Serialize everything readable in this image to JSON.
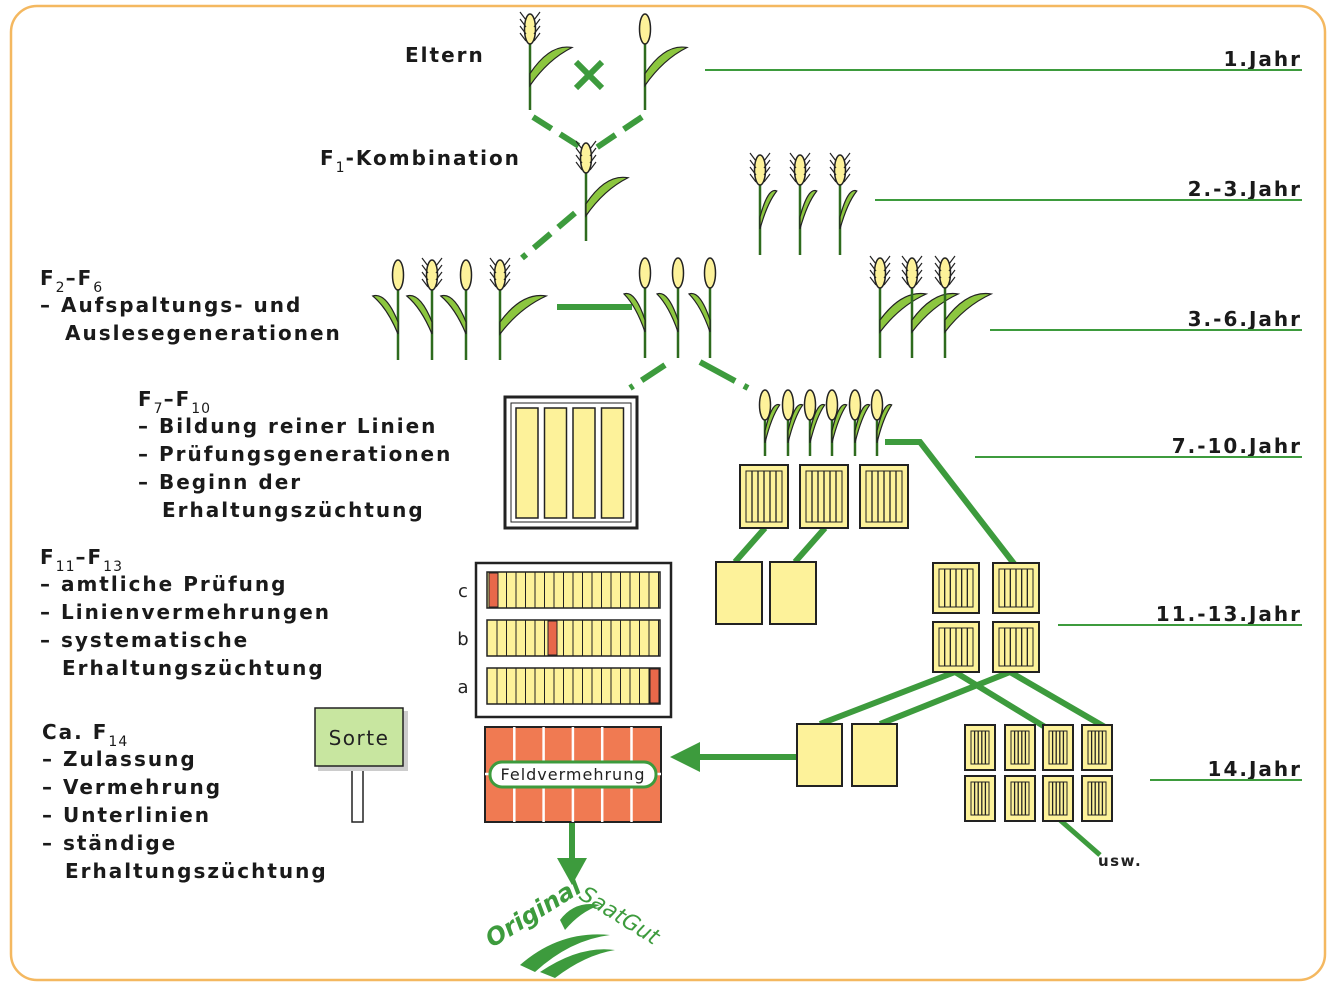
{
  "stages": [
    {
      "heading": [
        {
          "text": "Eltern"
        }
      ],
      "lines": []
    },
    {
      "heading": [
        {
          "text": "F"
        },
        {
          "sub": "1"
        },
        {
          "text": "-Kombination"
        }
      ],
      "lines": []
    },
    {
      "heading": [
        {
          "text": "F"
        },
        {
          "sub": "2"
        },
        {
          "text": "–F"
        },
        {
          "sub": "6"
        }
      ],
      "lines": [
        "– Aufspaltungs- und",
        "Auslesegenerationen"
      ]
    },
    {
      "heading": [
        {
          "text": "F"
        },
        {
          "sub": "7"
        },
        {
          "text": "–F"
        },
        {
          "sub": "10"
        }
      ],
      "lines": [
        "– Bildung reiner Linien",
        "– Prüfungsgenerationen",
        "– Beginn der",
        "Erhaltungszüchtung"
      ]
    },
    {
      "heading": [
        {
          "text": "F"
        },
        {
          "sub": "11"
        },
        {
          "text": "–F"
        },
        {
          "sub": "13"
        }
      ],
      "lines": [
        "– amtliche Prüfung",
        "– Linienvermehrungen",
        "– systematische",
        "Erhaltungszüchtung"
      ]
    },
    {
      "heading": [
        {
          "text": "Ca. F"
        },
        {
          "sub": "14"
        }
      ],
      "lines": [
        "– Zulassung",
        "– Vermehrung",
        "– Unterlinien",
        "– ständige",
        "Erhaltungszüchtung"
      ]
    }
  ],
  "years": [
    "1.Jahr",
    "2.-3.Jahr",
    "3.-6.Jahr",
    "7.-10.Jahr",
    "11.-13.Jahr",
    "14.Jahr"
  ],
  "rows": [
    "c",
    "b",
    "a"
  ],
  "sign": "Sorte",
  "field": "Feldvermehrung",
  "continuation": "usw.",
  "logo": {
    "word1": "Original",
    "word2": "SaatGut"
  }
}
